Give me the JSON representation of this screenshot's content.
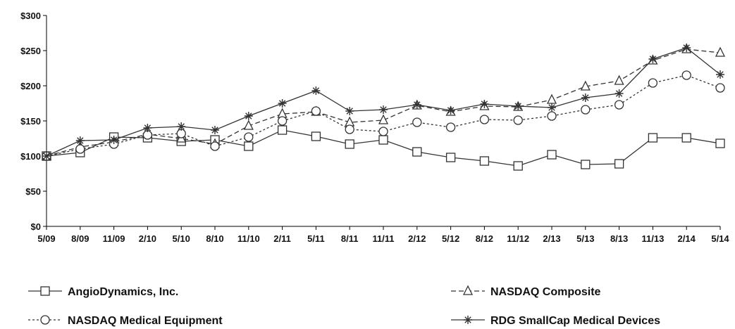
{
  "chart_data": {
    "type": "line",
    "categories": [
      "5/09",
      "8/09",
      "11/09",
      "2/10",
      "5/10",
      "8/10",
      "11/10",
      "2/11",
      "5/11",
      "8/11",
      "11/11",
      "2/12",
      "5/12",
      "8/12",
      "11/12",
      "2/13",
      "5/13",
      "8/13",
      "11/13",
      "2/14",
      "5/14"
    ],
    "ylim": [
      0,
      300
    ],
    "yticks": [
      0,
      50,
      100,
      150,
      200,
      250,
      300
    ],
    "ytick_labels": [
      "$0",
      "$50",
      "$100",
      "$150",
      "$200",
      "$250",
      "$300"
    ],
    "grid": false,
    "legend_position": "bottom",
    "series": [
      {
        "name": "AngioDynamics, Inc.",
        "marker": "square",
        "dash": "solid",
        "color": "#333333",
        "values": [
          100,
          105,
          127,
          126,
          121,
          123,
          114,
          137,
          128,
          117,
          123,
          106,
          98,
          93,
          86,
          102,
          88,
          89,
          126,
          126,
          118
        ]
      },
      {
        "name": "NASDAQ Composite",
        "marker": "triangle",
        "dash": "dashed",
        "color": "#333333",
        "values": [
          100,
          113,
          120,
          131,
          125,
          117,
          143,
          160,
          163,
          148,
          151,
          172,
          163,
          171,
          170,
          180,
          199,
          207,
          236,
          252,
          247
        ]
      },
      {
        "name": "NASDAQ Medical Equipment",
        "marker": "circle",
        "dash": "dotted",
        "color": "#333333",
        "values": [
          100,
          110,
          117,
          130,
          132,
          114,
          127,
          150,
          164,
          138,
          135,
          148,
          141,
          152,
          151,
          157,
          166,
          173,
          204,
          215,
          197
        ]
      },
      {
        "name": "RDG SmallCap Medical Devices",
        "marker": "star",
        "dash": "solid",
        "color": "#333333",
        "values": [
          100,
          122,
          123,
          140,
          142,
          137,
          157,
          175,
          193,
          164,
          166,
          173,
          165,
          174,
          171,
          169,
          183,
          189,
          238,
          254,
          216
        ]
      }
    ]
  }
}
